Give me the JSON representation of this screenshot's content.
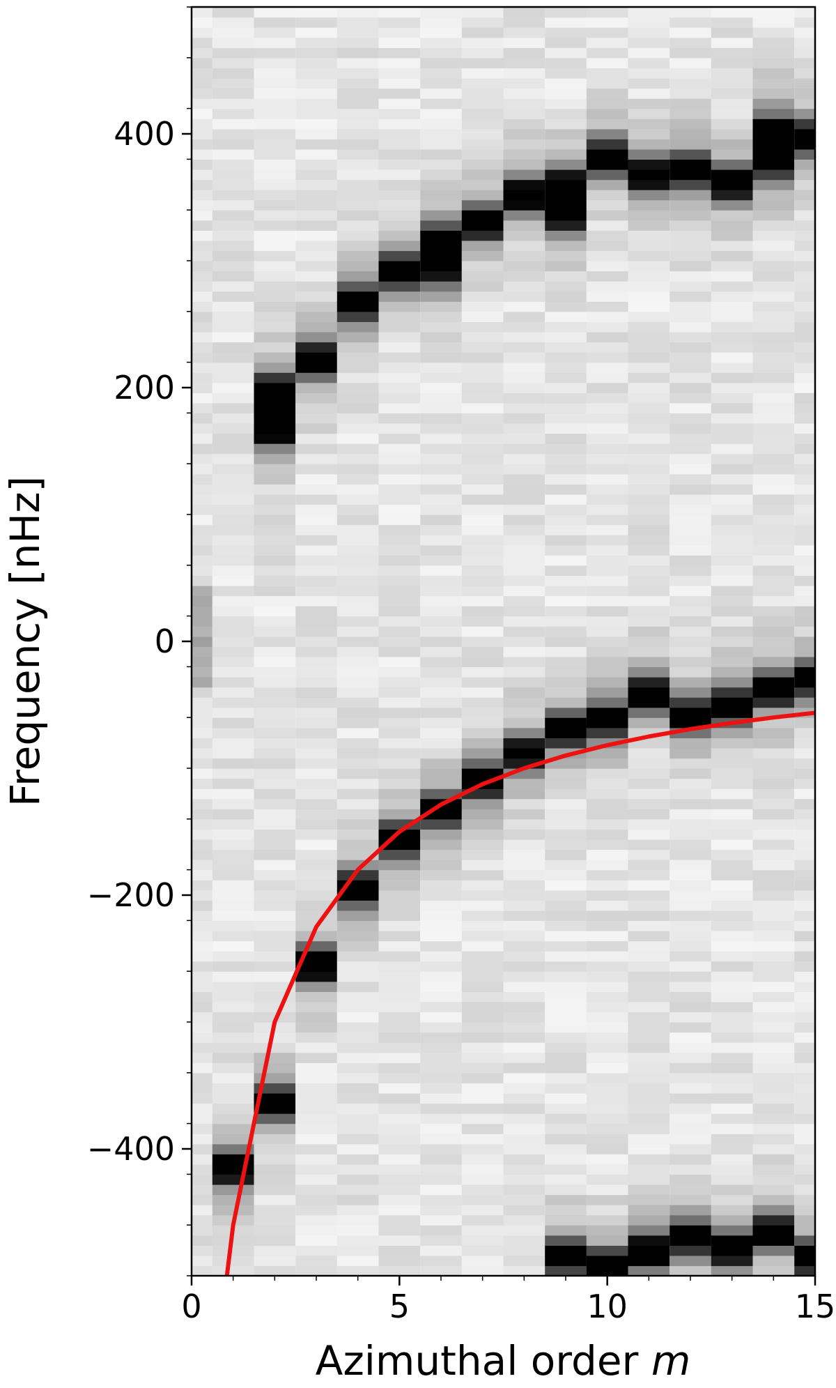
{
  "chart_data": {
    "type": "heatmap",
    "title": "",
    "xlabel": "Azimuthal order ",
    "xlabel_var": "m",
    "ylabel": "Frequency [nHz]",
    "xlim": [
      0,
      15
    ],
    "ylim": [
      -500,
      500
    ],
    "x_ticks": [
      0,
      5,
      10,
      15
    ],
    "x_tick_labels": [
      "0",
      "5",
      "10",
      "15"
    ],
    "y_ticks": [
      -400,
      -200,
      0,
      200,
      400
    ],
    "y_tick_labels": [
      "−400",
      "−200",
      "0",
      "200",
      "400"
    ],
    "colormap": "grayscale (white = low power, black = high power)",
    "curve_color": "#ee1111",
    "ridges": [
      {
        "name": "lower",
        "points": [
          [
            1,
            -415
          ],
          [
            2,
            -363
          ],
          [
            3,
            -255
          ],
          [
            4,
            -195
          ],
          [
            5,
            -155
          ],
          [
            6,
            -133
          ],
          [
            7,
            -110
          ],
          [
            8,
            -88
          ],
          [
            9,
            -70
          ],
          [
            10,
            -62
          ],
          [
            11,
            -42
          ],
          [
            12,
            -58
          ],
          [
            13,
            -50
          ],
          [
            14,
            -38
          ],
          [
            15,
            -30
          ]
        ]
      },
      {
        "name": "upper",
        "points": [
          [
            2,
            170
          ],
          [
            3,
            222
          ],
          [
            4,
            268
          ],
          [
            5,
            292
          ],
          [
            6,
            312
          ],
          [
            7,
            330
          ],
          [
            8,
            352
          ],
          [
            9,
            358
          ],
          [
            10,
            382
          ],
          [
            11,
            368
          ],
          [
            12,
            372
          ],
          [
            13,
            362
          ],
          [
            14,
            382
          ],
          [
            15,
            398
          ]
        ]
      },
      {
        "name": "upper-secondary",
        "points": [
          [
            2,
            195
          ],
          [
            6,
            300
          ],
          [
            9,
            340
          ],
          [
            14,
            400
          ]
        ]
      },
      {
        "name": "bottom",
        "points": [
          [
            9,
            -485
          ],
          [
            10,
            -492
          ],
          [
            11,
            -480
          ],
          [
            12,
            -470
          ],
          [
            13,
            -478
          ],
          [
            14,
            -465
          ],
          [
            15,
            -485
          ]
        ]
      }
    ],
    "curve": {
      "x": [
        0.85,
        1,
        2,
        3,
        4,
        5,
        6,
        7,
        8,
        9,
        10,
        11,
        12,
        13,
        14,
        15
      ],
      "y": [
        -500,
        -460,
        -300,
        -225,
        -180,
        -150,
        -128.6,
        -112.5,
        -100,
        -90,
        -81.8,
        -75,
        -69.2,
        -64.3,
        -60,
        -56.3
      ]
    }
  }
}
